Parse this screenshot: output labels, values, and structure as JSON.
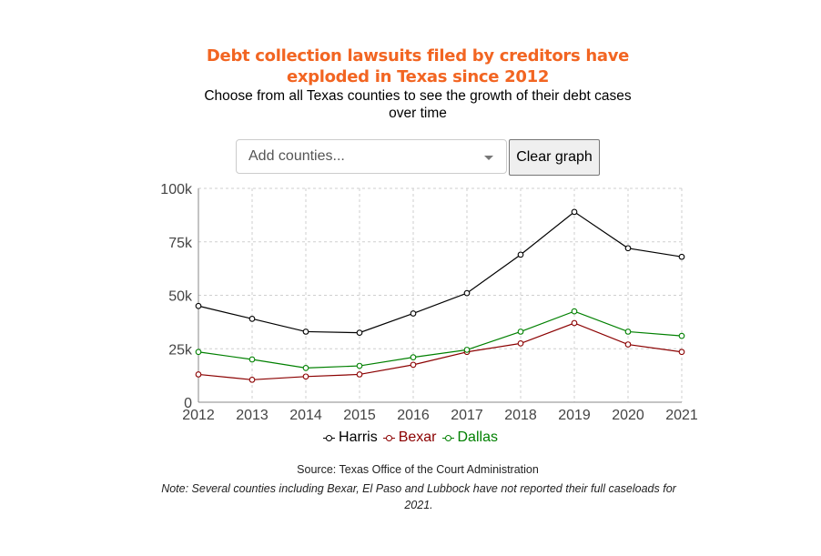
{
  "title": "Debt collection lawsuits filed by creditors have exploded in Texas since 2012",
  "subtitle": "Choose from all Texas counties to see the growth of their debt cases over time",
  "controls": {
    "select_placeholder": "Add counties...",
    "clear_label": "Clear graph"
  },
  "chart_data": {
    "type": "line",
    "x": [
      2012,
      2013,
      2014,
      2015,
      2016,
      2017,
      2018,
      2019,
      2020,
      2021
    ],
    "xlabels": [
      "2012",
      "2013",
      "2014",
      "2015",
      "2016",
      "2017",
      "2018",
      "2019",
      "2020",
      "2021"
    ],
    "ylim": [
      0,
      100000
    ],
    "yticks": [
      0,
      25000,
      50000,
      75000,
      100000
    ],
    "ytick_labels": [
      "0",
      "25k",
      "50k",
      "75k",
      "100k"
    ],
    "grid": true,
    "legend_position": "bottom",
    "series": [
      {
        "name": "Harris",
        "color": "#000000",
        "values": [
          45000,
          39000,
          33000,
          32500,
          41500,
          51000,
          69000,
          89000,
          72000,
          68000
        ]
      },
      {
        "name": "Bexar",
        "color": "#8b0000",
        "values": [
          13000,
          10500,
          12000,
          13000,
          17500,
          23500,
          27500,
          37000,
          27000,
          23500
        ]
      },
      {
        "name": "Dallas",
        "color": "#008000",
        "values": [
          23500,
          20000,
          16000,
          17000,
          21000,
          24500,
          33000,
          42500,
          33000,
          31000
        ]
      }
    ]
  },
  "source": "Source: Texas Office of the Court Administration",
  "note": "Note: Several counties including Bexar, El Paso and Lubbock have not reported their full caseloads for 2021."
}
